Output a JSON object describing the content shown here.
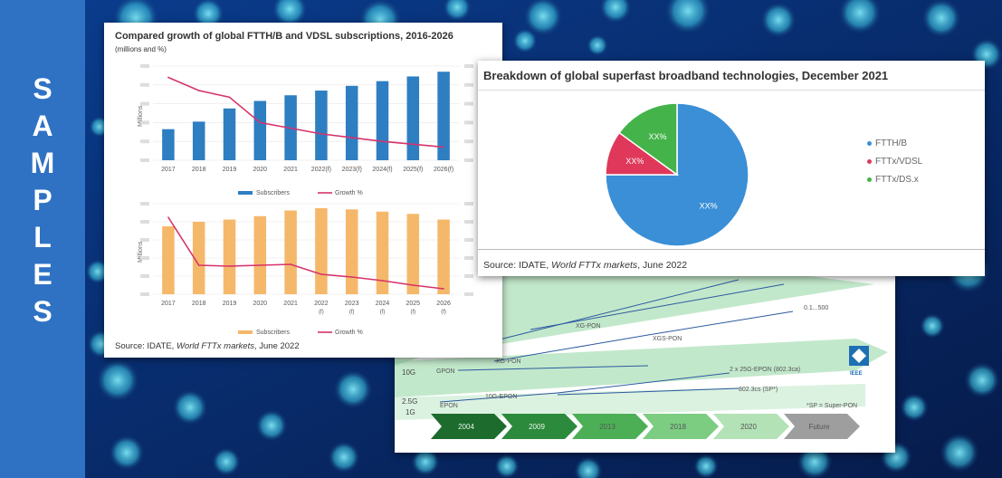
{
  "side_text": [
    "S",
    "A",
    "M",
    "P",
    "L",
    "E",
    "S"
  ],
  "colors": {
    "side": "#2f72c4",
    "bar_blue": "#2e7ec2",
    "bar_orange": "#f5b86a",
    "line": "#d6336c",
    "ftth": "#3a8fd6",
    "fttx": "#e0385a",
    "fttxds": "#44b34a",
    "road_green": "#8fd6a0"
  },
  "left_card": {
    "title": "Compared growth of global FTTH/B and VDSL subscriptions, 2016-2026",
    "title_suffix": "(millions and %)",
    "source_prefix": "Source: IDATE, ",
    "source_italic": "World FTTx markets",
    "source_suffix": ", June 2022"
  },
  "chart_data": [
    {
      "type": "bar",
      "title": "",
      "ylabel": "Millions",
      "categories": [
        "2017",
        "2018",
        "2019",
        "2020",
        "2021",
        "2022(f)",
        "2023(f)",
        "2024(f)",
        "2025(f)",
        "2026(f)"
      ],
      "series": [
        {
          "name": "Subscribers",
          "kind": "bar",
          "color": "#2e7ec2",
          "values": [
            330,
            410,
            550,
            630,
            690,
            740,
            790,
            840,
            890,
            940
          ]
        },
        {
          "name": "Growth %",
          "kind": "line",
          "color": "#d6336c",
          "values": [
            88,
            74,
            67,
            40,
            34,
            28,
            24,
            20,
            17,
            14
          ]
        }
      ],
      "ylim": [
        0,
        1000
      ],
      "legend_placement": "bottom"
    },
    {
      "type": "bar",
      "title": "",
      "ylabel": "Millions",
      "categories": [
        "2017",
        "2018",
        "2019",
        "2020",
        "2021",
        "2022",
        "2023",
        "2024",
        "2025",
        "2026"
      ],
      "category_sub": [
        "",
        "",
        "",
        "",
        "",
        "(f)",
        "(f)",
        "(f)",
        "(f)",
        "(f)"
      ],
      "series": [
        {
          "name": "Subscribers",
          "kind": "bar",
          "color": "#f5b86a",
          "values": [
            300,
            320,
            330,
            345,
            370,
            380,
            375,
            365,
            355,
            330
          ]
        },
        {
          "name": "Growth %",
          "kind": "line",
          "color": "#d6336c",
          "values": [
            85,
            32,
            31,
            32,
            33,
            22,
            19,
            15,
            10,
            6
          ]
        }
      ],
      "ylim": [
        0,
        400
      ],
      "legend_placement": "bottom"
    },
    {
      "type": "pie",
      "title": "Breakdown of global superfast broadband technologies, December 2021",
      "slices": [
        {
          "name": "FTTH/B",
          "label": "XX%",
          "value": 75,
          "color": "#3a8fd6"
        },
        {
          "name": "FTTx/VDSL",
          "label": "XX%",
          "value": 10,
          "color": "#e0385a"
        },
        {
          "name": "FTTx/DS.x",
          "label": "XX%",
          "value": 15,
          "color": "#44b34a"
        }
      ],
      "legend_placement": "right",
      "source_prefix": "Source: IDATE, ",
      "source_italic": "World FTTx markets",
      "source_suffix": ", June 2022"
    }
  ],
  "roadmap": {
    "row_labels": [
      "10G",
      "2.5G",
      "1G"
    ],
    "items": [
      "XG-PON",
      "XGS-PON",
      "XG-PON",
      "GPON",
      "10G-EPON",
      "EPON",
      "2 x 25G-EPON (802.3ca)",
      "802.3cs (SP*)"
    ],
    "top_right_label": "0.1...500",
    "note": "*SP = Super-PON",
    "timeline": [
      "2004",
      "2009",
      "2013",
      "2018",
      "2020",
      "Future"
    ],
    "logo_text": "IEEE"
  }
}
